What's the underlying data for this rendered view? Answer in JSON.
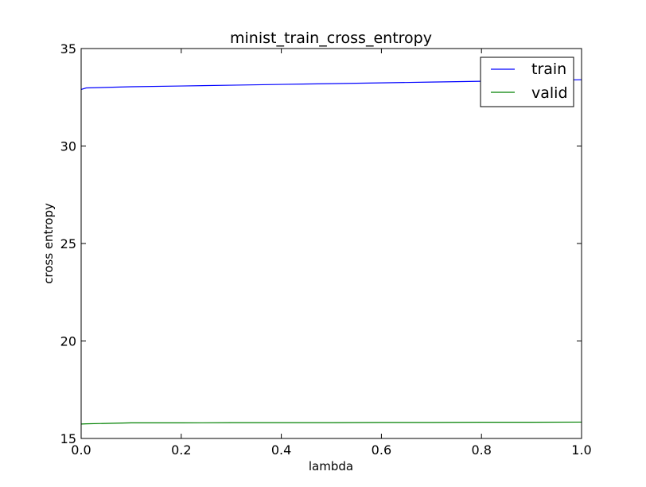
{
  "chart_data": {
    "type": "line",
    "title": "minist_train_cross_entropy",
    "xlabel": "lambda",
    "ylabel": "cross entropy",
    "xlim": [
      0.0,
      1.0
    ],
    "ylim": [
      15,
      35
    ],
    "x_ticks": [
      "0.0",
      "0.2",
      "0.4",
      "0.6",
      "0.8",
      "1.0"
    ],
    "y_ticks": [
      "15",
      "20",
      "25",
      "30",
      "35"
    ],
    "grid": false,
    "legend_position": "top-right",
    "series": [
      {
        "name": "train",
        "color": "#0000ff",
        "x": [
          0.0,
          0.01,
          0.1,
          0.2,
          0.3,
          0.4,
          0.5,
          0.6,
          0.7,
          0.8,
          0.9,
          1.0
        ],
        "y": [
          32.9,
          32.98,
          33.04,
          33.08,
          33.12,
          33.16,
          33.2,
          33.24,
          33.28,
          33.32,
          33.36,
          33.4
        ]
      },
      {
        "name": "valid",
        "color": "#008000",
        "x": [
          0.0,
          0.01,
          0.1,
          0.2,
          0.3,
          0.4,
          0.5,
          0.6,
          0.7,
          0.8,
          0.9,
          1.0
        ],
        "y": [
          15.74,
          15.75,
          15.8,
          15.8,
          15.81,
          15.81,
          15.81,
          15.82,
          15.82,
          15.83,
          15.83,
          15.84
        ]
      }
    ]
  }
}
